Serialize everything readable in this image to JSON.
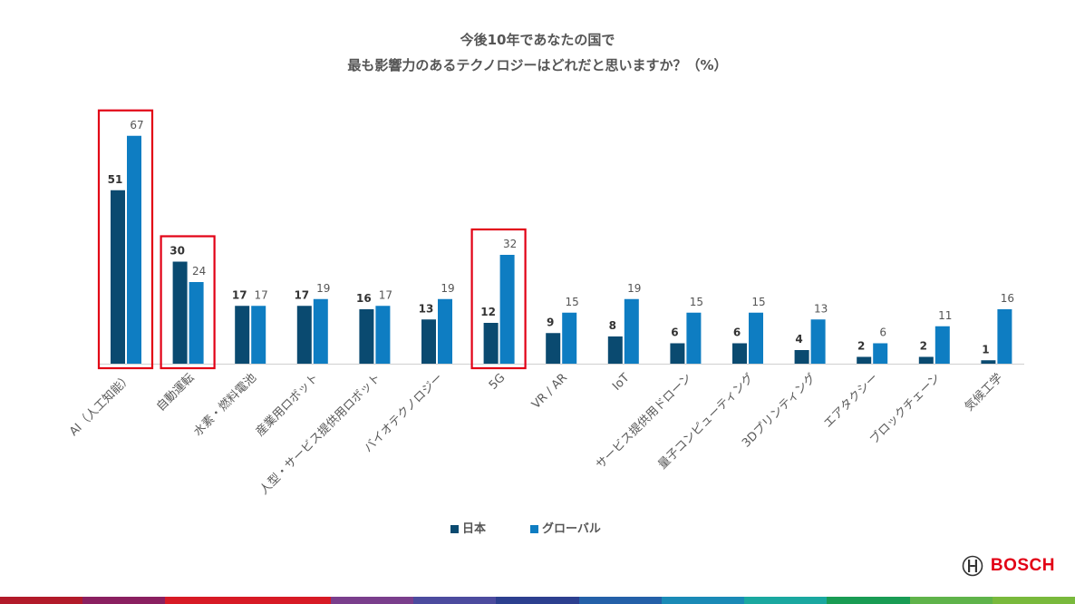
{
  "title_lines": [
    "今後10年であなたの国で",
    "最も影響力のあるテクノロジーはどれだと思いますか？（%）"
  ],
  "chart_data": {
    "type": "bar",
    "title": "今後10年であなたの国で 最も影響力のあるテクノロジーはどれだと思いますか？（%）",
    "categories": [
      "AI（人工知能）",
      "自動運転",
      "水素・燃料電池",
      "産業用ロボット",
      "人型・サービス提供用ロボット",
      "バイオテクノロジー",
      "5G",
      "VR / AR",
      "IoT",
      "サービス提供用ドローン",
      "量子コンピューティング",
      "3Dプリンティング",
      "エアタクシー",
      "ブロックチェーン",
      "気候工学"
    ],
    "series": [
      {
        "name": "日本",
        "values": [
          51,
          30,
          17,
          17,
          16,
          13,
          12,
          9,
          8,
          6,
          6,
          4,
          2,
          2,
          1
        ]
      },
      {
        "name": "グローバル",
        "values": [
          67,
          24,
          17,
          19,
          17,
          19,
          32,
          15,
          19,
          15,
          15,
          13,
          6,
          11,
          16
        ]
      }
    ],
    "ylim": [
      0,
      70
    ],
    "grid": false,
    "legend_position": "bottom",
    "highlighted_categories": [
      "AI（人工知能）",
      "自動運転",
      "5G"
    ],
    "colors": {
      "日本": "#0a4a70",
      "グローバル": "#0e7dc2",
      "highlight": "#e20015"
    }
  },
  "legend": [
    {
      "label": "日本",
      "color": "#0a4a70"
    },
    {
      "label": "グローバル",
      "color": "#0e7dc2"
    }
  ],
  "brand": {
    "name": "BOSCH",
    "color": "#e20015"
  },
  "stripe_colors": [
    "#b21a2a",
    "#8a2060",
    "#d71a25",
    "#d71a25",
    "#7a3e8c",
    "#4c4b9e",
    "#2c3f8f",
    "#2460a8",
    "#1a8ab6",
    "#1aa8a0",
    "#199c54",
    "#5fb34a",
    "#79b93c"
  ]
}
